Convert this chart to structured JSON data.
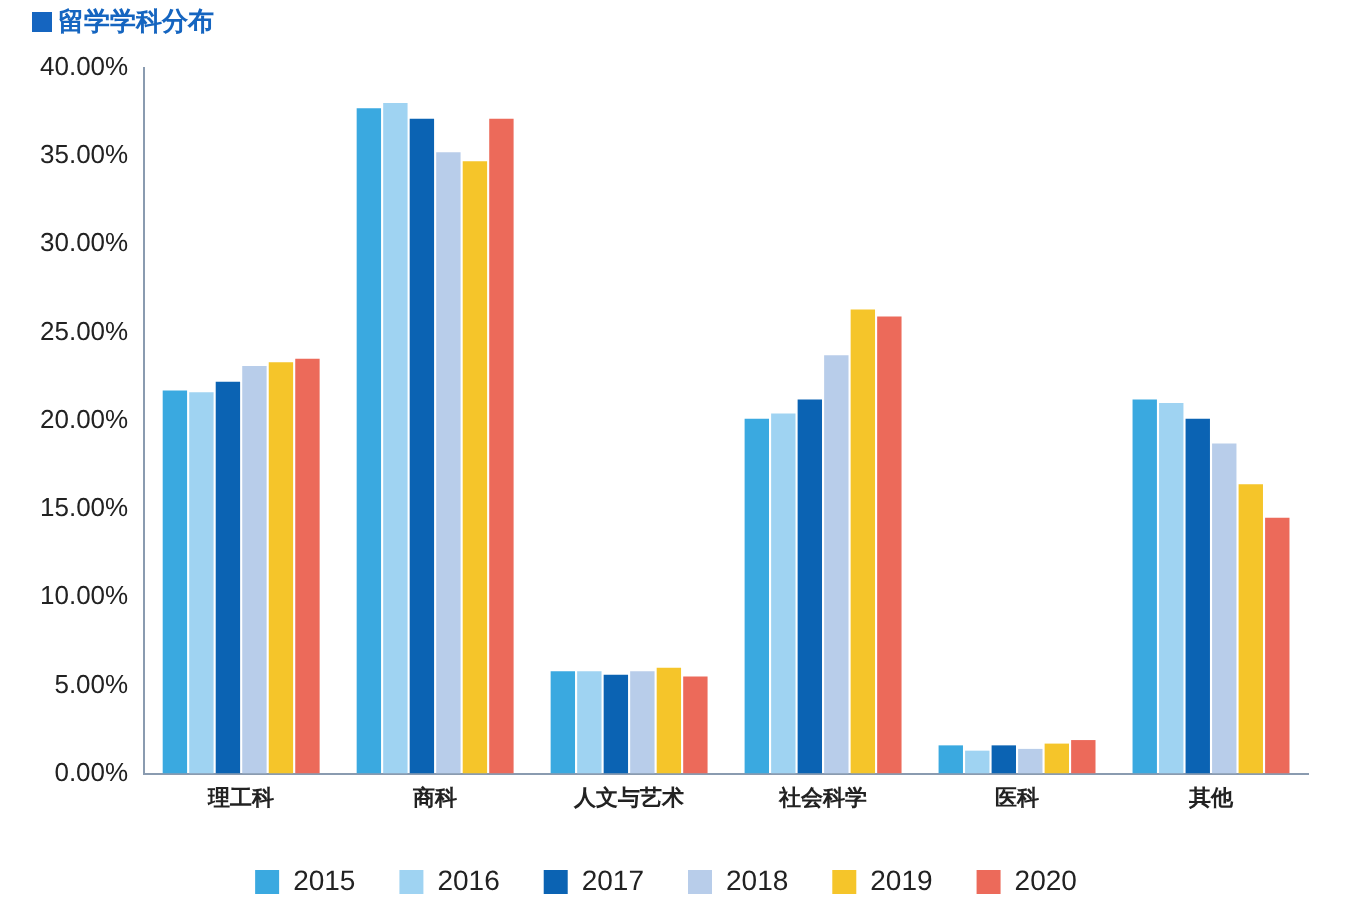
{
  "chart_data": {
    "type": "bar",
    "title": "留学学科分布",
    "categories": [
      "理工科",
      "商科",
      "人文与艺术",
      "社会科学",
      "医科",
      "其他"
    ],
    "series": [
      {
        "name": "2015",
        "color": "#3aa9e0",
        "values": [
          21.7,
          37.7,
          5.8,
          20.1,
          1.6,
          21.2
        ]
      },
      {
        "name": "2016",
        "color": "#9fd3f2",
        "values": [
          21.6,
          38.0,
          5.8,
          20.4,
          1.3,
          21.0
        ]
      },
      {
        "name": "2017",
        "color": "#0b63b3",
        "values": [
          22.2,
          37.1,
          5.6,
          21.2,
          1.6,
          20.1
        ]
      },
      {
        "name": "2018",
        "color": "#b8cdea",
        "values": [
          23.1,
          35.2,
          5.8,
          23.7,
          1.4,
          18.7
        ]
      },
      {
        "name": "2019",
        "color": "#f5c52a",
        "values": [
          23.3,
          34.7,
          6.0,
          26.3,
          1.7,
          16.4
        ]
      },
      {
        "name": "2020",
        "color": "#ec6a5a",
        "values": [
          23.5,
          37.1,
          5.5,
          25.9,
          1.9,
          14.5
        ]
      }
    ],
    "ylim": [
      0,
      40
    ],
    "yticks": [
      {
        "value": 0,
        "label": "0.00%"
      },
      {
        "value": 5,
        "label": "5.00%"
      },
      {
        "value": 10,
        "label": "10.00%"
      },
      {
        "value": 15,
        "label": "15.00%"
      },
      {
        "value": 20,
        "label": "20.00%"
      },
      {
        "value": 25,
        "label": "25.00%"
      },
      {
        "value": 30,
        "label": "30.00%"
      },
      {
        "value": 35,
        "label": "35.00%"
      },
      {
        "value": 40,
        "label": "40.00%"
      }
    ],
    "grid": false,
    "legend": "bottom"
  }
}
